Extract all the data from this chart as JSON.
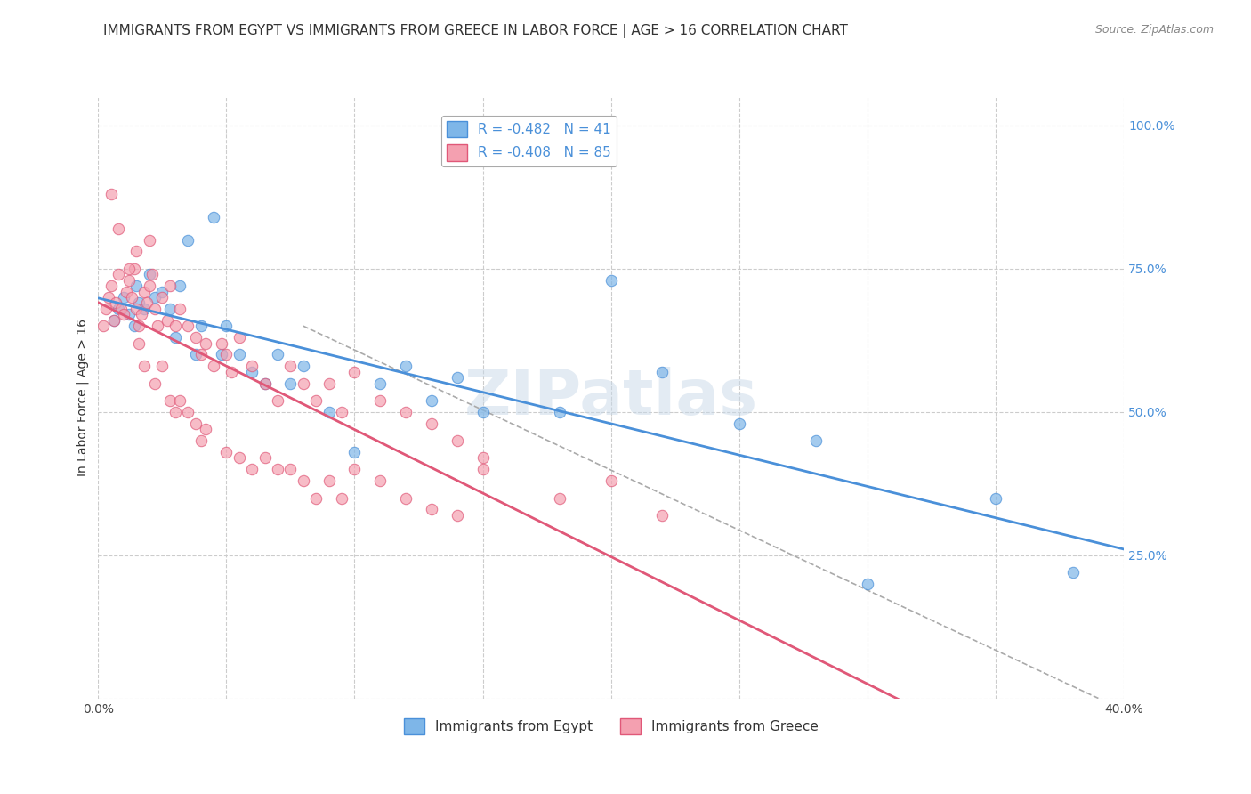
{
  "title": "IMMIGRANTS FROM EGYPT VS IMMIGRANTS FROM GREECE IN LABOR FORCE | AGE > 16 CORRELATION CHART",
  "source": "Source: ZipAtlas.com",
  "ylabel": "In Labor Force | Age > 16",
  "xlabel": "",
  "egypt_R": -0.482,
  "egypt_N": 41,
  "greece_R": -0.408,
  "greece_N": 85,
  "egypt_color": "#7eb6e8",
  "greece_color": "#f4a0b0",
  "egypt_line_color": "#4a90d9",
  "greece_line_color": "#e05878",
  "watermark": "ZIPatlas",
  "xlim": [
    0.0,
    0.4
  ],
  "ylim": [
    0.0,
    1.05
  ],
  "xticks": [
    0.0,
    0.05,
    0.1,
    0.15,
    0.2,
    0.25,
    0.3,
    0.35,
    0.4
  ],
  "yticks": [
    0.0,
    0.25,
    0.5,
    0.75,
    1.0
  ],
  "xtick_labels": [
    "0.0%",
    "",
    "",
    "",
    "",
    "",
    "",
    "",
    "40.0%"
  ],
  "ytick_labels": [
    "",
    "25.0%",
    "50.0%",
    "75.0%",
    "100.0%"
  ],
  "egypt_scatter_x": [
    0.006,
    0.008,
    0.01,
    0.012,
    0.014,
    0.015,
    0.016,
    0.018,
    0.02,
    0.022,
    0.025,
    0.028,
    0.03,
    0.032,
    0.035,
    0.038,
    0.04,
    0.045,
    0.048,
    0.05,
    0.055,
    0.06,
    0.065,
    0.07,
    0.075,
    0.08,
    0.09,
    0.1,
    0.11,
    0.12,
    0.13,
    0.14,
    0.15,
    0.18,
    0.2,
    0.22,
    0.25,
    0.28,
    0.3,
    0.35,
    0.38
  ],
  "egypt_scatter_y": [
    0.66,
    0.68,
    0.7,
    0.67,
    0.65,
    0.72,
    0.69,
    0.68,
    0.74,
    0.7,
    0.71,
    0.68,
    0.63,
    0.72,
    0.8,
    0.6,
    0.65,
    0.84,
    0.6,
    0.65,
    0.6,
    0.57,
    0.55,
    0.6,
    0.55,
    0.58,
    0.5,
    0.43,
    0.55,
    0.58,
    0.52,
    0.56,
    0.5,
    0.5,
    0.73,
    0.57,
    0.48,
    0.45,
    0.2,
    0.35,
    0.22
  ],
  "greece_scatter_x": [
    0.002,
    0.003,
    0.004,
    0.005,
    0.006,
    0.007,
    0.008,
    0.009,
    0.01,
    0.011,
    0.012,
    0.013,
    0.014,
    0.015,
    0.016,
    0.017,
    0.018,
    0.019,
    0.02,
    0.021,
    0.022,
    0.023,
    0.025,
    0.027,
    0.028,
    0.03,
    0.032,
    0.035,
    0.038,
    0.04,
    0.042,
    0.045,
    0.048,
    0.05,
    0.052,
    0.055,
    0.06,
    0.065,
    0.07,
    0.075,
    0.08,
    0.085,
    0.09,
    0.095,
    0.1,
    0.11,
    0.12,
    0.13,
    0.14,
    0.15,
    0.016,
    0.018,
    0.022,
    0.025,
    0.028,
    0.03,
    0.032,
    0.035,
    0.038,
    0.04,
    0.042,
    0.05,
    0.055,
    0.06,
    0.065,
    0.07,
    0.075,
    0.08,
    0.085,
    0.09,
    0.095,
    0.1,
    0.11,
    0.12,
    0.13,
    0.14,
    0.15,
    0.18,
    0.2,
    0.22,
    0.005,
    0.008,
    0.012,
    0.015,
    0.02
  ],
  "greece_scatter_y": [
    0.65,
    0.68,
    0.7,
    0.72,
    0.66,
    0.69,
    0.74,
    0.68,
    0.67,
    0.71,
    0.73,
    0.7,
    0.75,
    0.68,
    0.65,
    0.67,
    0.71,
    0.69,
    0.72,
    0.74,
    0.68,
    0.65,
    0.7,
    0.66,
    0.72,
    0.65,
    0.68,
    0.65,
    0.63,
    0.6,
    0.62,
    0.58,
    0.62,
    0.6,
    0.57,
    0.63,
    0.58,
    0.55,
    0.52,
    0.58,
    0.55,
    0.52,
    0.55,
    0.5,
    0.57,
    0.52,
    0.5,
    0.48,
    0.45,
    0.42,
    0.62,
    0.58,
    0.55,
    0.58,
    0.52,
    0.5,
    0.52,
    0.5,
    0.48,
    0.45,
    0.47,
    0.43,
    0.42,
    0.4,
    0.42,
    0.4,
    0.4,
    0.38,
    0.35,
    0.38,
    0.35,
    0.4,
    0.38,
    0.35,
    0.33,
    0.32,
    0.4,
    0.35,
    0.38,
    0.32,
    0.88,
    0.82,
    0.75,
    0.78,
    0.8
  ],
  "background_color": "#ffffff",
  "grid_color": "#cccccc",
  "title_fontsize": 11,
  "axis_label_fontsize": 10,
  "tick_fontsize": 10,
  "legend_fontsize": 11
}
